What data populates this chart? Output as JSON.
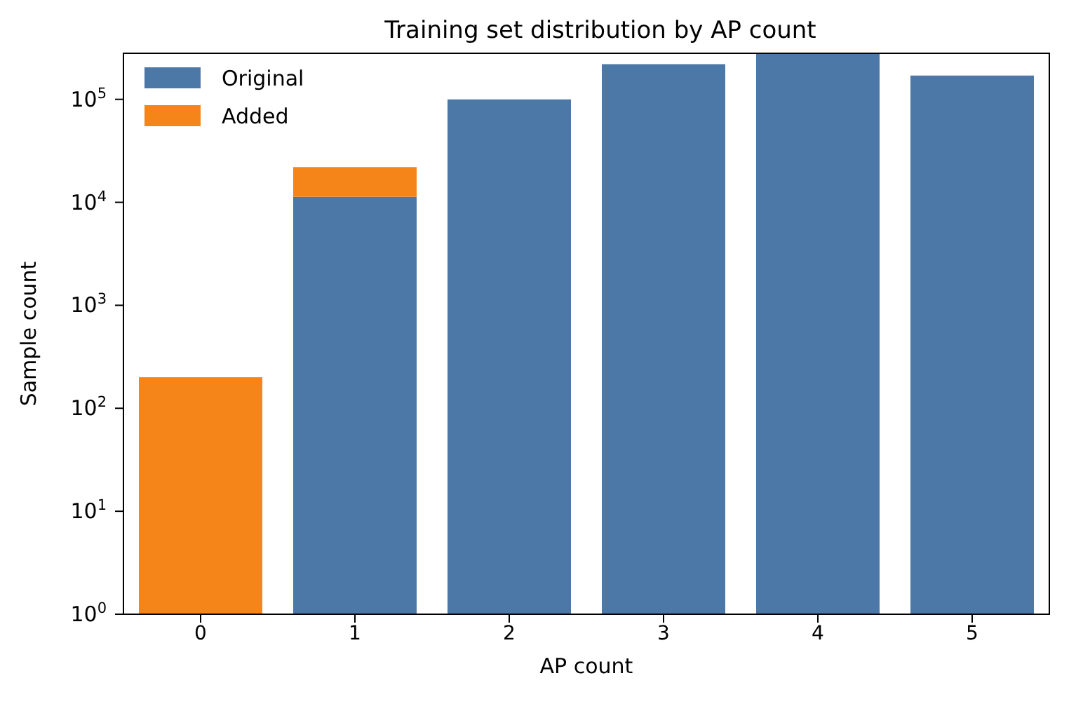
{
  "chart_data": {
    "type": "bar",
    "title": "Training set distribution by AP count",
    "xlabel": "AP count",
    "ylabel": "Sample count",
    "categories": [
      "0",
      "1",
      "2",
      "3",
      "4",
      "5"
    ],
    "stacked": true,
    "log": "y",
    "series": [
      {
        "name": "Original",
        "color": "#4c78a8",
        "values": [
          null,
          11300,
          100000,
          220000,
          280000,
          170000
        ]
      },
      {
        "name": "Added",
        "color": "#f58518",
        "values": [
          200,
          10700,
          null,
          null,
          null,
          null
        ]
      }
    ],
    "ylim": [
      1,
      280000
    ],
    "yticks": [
      {
        "value": 1,
        "label": "10$^{0}$"
      },
      {
        "value": 10,
        "label": "10$^{1}$"
      },
      {
        "value": 100,
        "label": "10$^{2}$"
      },
      {
        "value": 1000,
        "label": "10$^{3}$"
      },
      {
        "value": 10000,
        "label": "10$^{4}$"
      },
      {
        "value": 100000,
        "label": "10$^{5}$"
      }
    ],
    "legend": "top left",
    "grid": false
  }
}
